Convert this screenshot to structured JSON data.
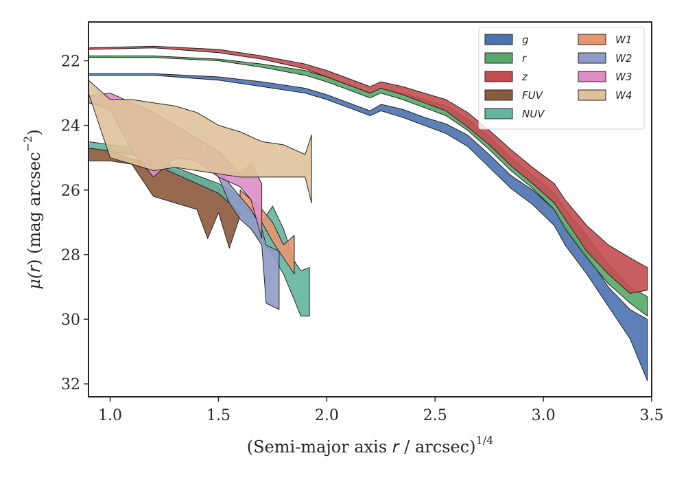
{
  "chart_data": {
    "type": "area",
    "title": "",
    "xlabel": "(Semi-major axis r / arcsec)^1/4",
    "xlabel_parts": [
      "(Semi-major axis ",
      "r",
      " / arcsec)",
      "1/4"
    ],
    "ylabel": "μ(r) (mag arcsec^−2)",
    "ylabel_parts": [
      "μ(",
      "r",
      ") (mag arcsec",
      "−2",
      ")"
    ],
    "xlim": [
      0.9,
      3.5
    ],
    "ylim": [
      32.4,
      20.8
    ],
    "y_inverted": true,
    "grid": false,
    "legend_position": "top-right",
    "legend_columns": 2,
    "x_ticks": [
      1.0,
      1.5,
      2.0,
      2.5,
      3.0,
      3.5
    ],
    "x_tick_labels": [
      "1.0",
      "1.5",
      "2.0",
      "2.5",
      "3.0",
      "3.5"
    ],
    "y_ticks": [
      22,
      24,
      26,
      28,
      30,
      32
    ],
    "y_tick_labels": [
      "22",
      "24",
      "26",
      "28",
      "30",
      "32"
    ],
    "series": [
      {
        "name": "g",
        "color": "#4c72b0",
        "x": [
          0.9,
          1.2,
          1.5,
          1.7,
          1.9,
          2.0,
          2.1,
          2.2,
          2.25,
          2.35,
          2.45,
          2.55,
          2.65,
          2.75,
          2.85,
          2.95,
          3.05,
          3.1,
          3.2,
          3.3,
          3.4,
          3.48
        ],
        "lo": [
          22.4,
          22.4,
          22.5,
          22.65,
          22.85,
          23.05,
          23.3,
          23.55,
          23.35,
          23.5,
          23.75,
          23.95,
          24.3,
          24.9,
          25.55,
          26.0,
          26.6,
          27.1,
          28.0,
          29.0,
          29.7,
          30.0
        ],
        "hi": [
          22.45,
          22.45,
          22.6,
          22.8,
          23.0,
          23.2,
          23.45,
          23.7,
          23.55,
          23.75,
          24.0,
          24.25,
          24.65,
          25.3,
          25.95,
          26.45,
          27.1,
          27.7,
          28.6,
          29.6,
          30.6,
          31.9
        ]
      },
      {
        "name": "r",
        "color": "#55a868",
        "x": [
          0.9,
          1.2,
          1.5,
          1.7,
          1.9,
          2.0,
          2.1,
          2.2,
          2.25,
          2.35,
          2.45,
          2.55,
          2.65,
          2.75,
          2.85,
          2.95,
          3.05,
          3.1,
          3.2,
          3.3,
          3.4,
          3.48
        ],
        "lo": [
          21.85,
          21.85,
          21.95,
          22.1,
          22.3,
          22.5,
          22.75,
          23.0,
          22.85,
          23.0,
          23.2,
          23.4,
          23.8,
          24.35,
          25.0,
          25.55,
          26.1,
          26.6,
          27.4,
          28.3,
          29.0,
          29.3
        ],
        "hi": [
          21.9,
          21.9,
          22.0,
          22.2,
          22.45,
          22.65,
          22.9,
          23.15,
          23.0,
          23.2,
          23.45,
          23.7,
          24.15,
          24.75,
          25.4,
          25.95,
          26.6,
          27.2,
          28.1,
          28.9,
          29.5,
          29.9
        ]
      },
      {
        "name": "z",
        "color": "#c44e52",
        "x": [
          0.9,
          1.2,
          1.5,
          1.7,
          1.9,
          2.0,
          2.1,
          2.2,
          2.25,
          2.35,
          2.45,
          2.55,
          2.65,
          2.75,
          2.85,
          2.95,
          3.05,
          3.1,
          3.2,
          3.3,
          3.4,
          3.48
        ],
        "lo": [
          21.6,
          21.55,
          21.65,
          21.85,
          22.1,
          22.3,
          22.55,
          22.8,
          22.65,
          22.8,
          23.0,
          23.2,
          23.6,
          24.15,
          24.75,
          25.3,
          25.8,
          26.3,
          27.1,
          27.7,
          28.1,
          28.4
        ],
        "hi": [
          21.65,
          21.6,
          21.75,
          21.95,
          22.25,
          22.5,
          22.75,
          23.0,
          22.85,
          23.05,
          23.3,
          23.55,
          24.05,
          24.6,
          25.25,
          25.8,
          26.4,
          26.9,
          27.9,
          28.6,
          29.2,
          29.1
        ]
      },
      {
        "name": "FUV",
        "color": "#8c5a3c",
        "x": [
          0.9,
          1.0,
          1.1,
          1.2,
          1.3,
          1.4,
          1.45,
          1.5,
          1.55,
          1.6
        ],
        "lo": [
          24.7,
          24.75,
          25.05,
          25.15,
          25.4,
          25.55,
          25.7,
          25.9,
          26.1,
          26.2
        ],
        "hi": [
          25.1,
          25.1,
          25.2,
          26.2,
          26.4,
          26.6,
          27.5,
          26.7,
          27.8,
          26.8
        ]
      },
      {
        "name": "NUV",
        "color": "#64b5a0",
        "x": [
          0.9,
          1.1,
          1.3,
          1.5,
          1.6,
          1.65,
          1.7,
          1.75,
          1.8,
          1.85,
          1.88,
          1.92
        ],
        "lo": [
          24.5,
          24.7,
          25.3,
          25.8,
          26.2,
          26.6,
          27.0,
          26.5,
          27.2,
          28.2,
          28.5,
          28.4
        ],
        "hi": [
          24.7,
          24.9,
          25.5,
          26.1,
          26.7,
          27.2,
          27.6,
          28.0,
          28.6,
          29.4,
          29.9,
          29.9
        ]
      },
      {
        "name": "W1",
        "color": "#e8956f",
        "x": [
          1.6,
          1.65,
          1.7,
          1.75,
          1.8,
          1.85
        ],
        "lo": [
          26.0,
          26.3,
          26.6,
          27.0,
          27.7,
          27.4
        ],
        "hi": [
          26.4,
          26.7,
          27.0,
          27.6,
          28.1,
          28.6
        ]
      },
      {
        "name": "W2",
        "color": "#8f9bc7",
        "x": [
          1.45,
          1.5,
          1.55,
          1.6,
          1.65,
          1.7,
          1.72,
          1.78
        ],
        "lo": [
          25.0,
          25.3,
          25.8,
          26.2,
          26.6,
          27.2,
          27.7,
          27.9
        ],
        "hi": [
          25.2,
          25.6,
          26.4,
          26.9,
          27.2,
          27.7,
          29.5,
          29.7
        ]
      },
      {
        "name": "W3",
        "color": "#dd8ec5",
        "x": [
          0.9,
          1.0,
          1.1,
          1.2,
          1.3,
          1.4,
          1.5,
          1.6,
          1.65,
          1.7
        ],
        "lo": [
          23.1,
          23.0,
          23.3,
          23.6,
          24.0,
          24.4,
          24.8,
          25.5,
          25.2,
          25.8
        ],
        "hi": [
          23.3,
          23.5,
          24.8,
          25.6,
          25.0,
          25.1,
          25.6,
          25.9,
          26.3,
          27.5
        ]
      },
      {
        "name": "W4",
        "color": "#dfc29b",
        "x": [
          0.9,
          1.0,
          1.1,
          1.2,
          1.3,
          1.4,
          1.5,
          1.6,
          1.7,
          1.8,
          1.9,
          1.93
        ],
        "lo": [
          22.6,
          23.2,
          23.2,
          23.3,
          23.4,
          23.6,
          24.0,
          24.2,
          24.5,
          24.6,
          24.9,
          24.3
        ],
        "hi": [
          23.0,
          25.0,
          25.2,
          25.4,
          25.3,
          25.4,
          25.5,
          25.6,
          25.6,
          25.6,
          25.6,
          26.4
        ]
      }
    ]
  }
}
